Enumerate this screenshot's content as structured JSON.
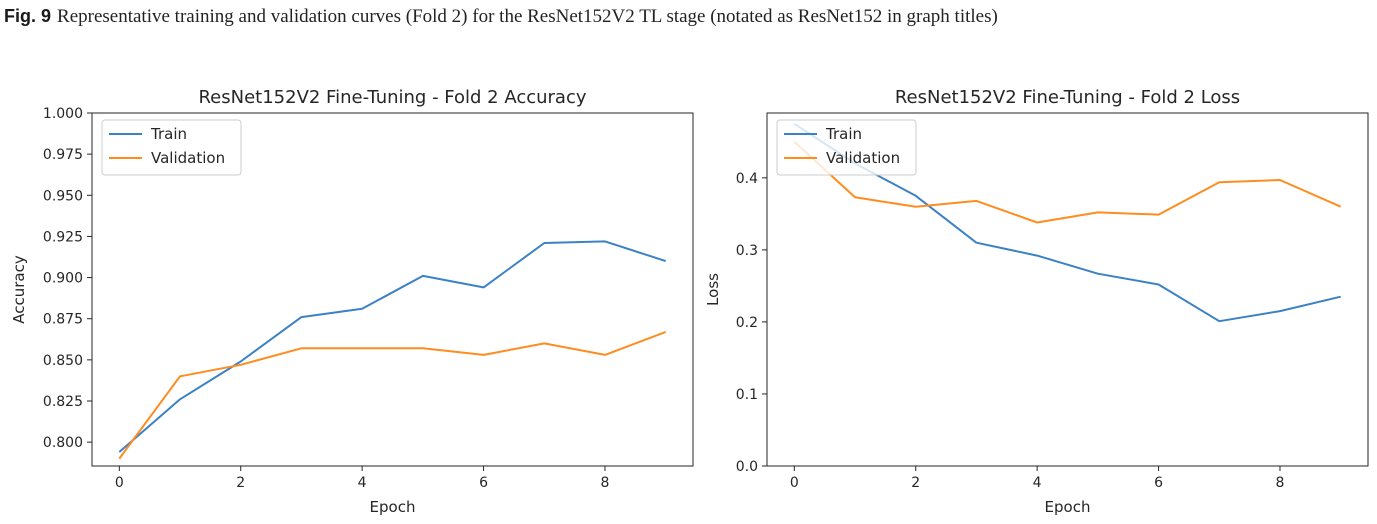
{
  "caption": {
    "label": "Fig. 9",
    "text": "Representative training and validation curves (Fold 2) for the ResNet152V2 TL stage (notated as ResNet152 in graph titles)"
  },
  "colors": {
    "train": "#3b82c4",
    "validation": "#ff8c1f"
  },
  "chart_data": [
    {
      "type": "line",
      "title": "ResNet152V2 Fine-Tuning - Fold 2 Accuracy",
      "xlabel": "Epoch",
      "ylabel": "Accuracy",
      "x": [
        0,
        1,
        2,
        3,
        4,
        5,
        6,
        7,
        8,
        9
      ],
      "xlim": [
        -0.45,
        9.45
      ],
      "ylim": [
        0.7855,
        1.0
      ],
      "xticks": [
        0,
        2,
        4,
        6,
        8
      ],
      "yticks": [
        0.8,
        0.825,
        0.85,
        0.875,
        0.9,
        0.925,
        0.95,
        0.975,
        1.0
      ],
      "ytick_labels": [
        "0.800",
        "0.825",
        "0.850",
        "0.875",
        "0.900",
        "0.925",
        "0.950",
        "0.975",
        "1.000"
      ],
      "legend": "top-left",
      "series": [
        {
          "name": "Train",
          "values": [
            0.794,
            0.826,
            0.849,
            0.876,
            0.881,
            0.901,
            0.894,
            0.921,
            0.922,
            0.91
          ]
        },
        {
          "name": "Validation",
          "values": [
            0.79,
            0.84,
            0.847,
            0.857,
            0.857,
            0.857,
            0.853,
            0.86,
            0.853,
            0.867
          ]
        }
      ]
    },
    {
      "type": "line",
      "title": "ResNet152V2 Fine-Tuning - Fold 2 Loss",
      "xlabel": "Epoch",
      "ylabel": "Loss",
      "x": [
        0,
        1,
        2,
        3,
        4,
        5,
        6,
        7,
        8,
        9
      ],
      "xlim": [
        -0.45,
        9.45
      ],
      "ylim": [
        0.0,
        0.49
      ],
      "xticks": [
        0,
        2,
        4,
        6,
        8
      ],
      "yticks": [
        0.0,
        0.1,
        0.2,
        0.3,
        0.4
      ],
      "ytick_labels": [
        "0.0",
        "0.1",
        "0.2",
        "0.3",
        "0.4"
      ],
      "legend": "top-left",
      "series": [
        {
          "name": "Train",
          "values": [
            0.475,
            0.42,
            0.375,
            0.31,
            0.292,
            0.267,
            0.252,
            0.201,
            0.215,
            0.235
          ]
        },
        {
          "name": "Validation",
          "values": [
            0.45,
            0.373,
            0.36,
            0.368,
            0.338,
            0.352,
            0.349,
            0.394,
            0.397,
            0.36
          ]
        }
      ]
    }
  ]
}
